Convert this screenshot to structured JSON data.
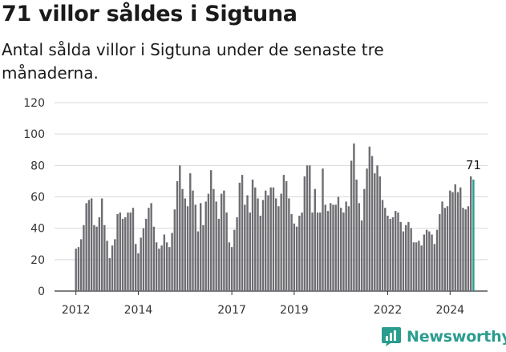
{
  "title": "71 villor såldes i Sigtuna",
  "subtitle": "Antal sålda villor i Sigtuna under de senaste tre månaderna.",
  "brand": {
    "name": "Newsworthy",
    "icon": "newsworthy-logo-icon",
    "color": "#2a9d8f"
  },
  "colors": {
    "bar": "#6d6d72",
    "highlight": "#2a9d8f",
    "grid": "#d9d9d9",
    "axis": "#333333"
  },
  "chart_data": {
    "type": "bar",
    "title": "71 villor såldes i Sigtuna",
    "subtitle": "Antal sålda villor i Sigtuna under de senaste tre månaderna.",
    "xlabel": "",
    "ylabel": "",
    "ylim": [
      0,
      120
    ],
    "yticks": [
      0,
      20,
      40,
      60,
      80,
      100,
      120
    ],
    "xticks": [
      {
        "label": "2012",
        "index": 0
      },
      {
        "label": "2014",
        "index": 24
      },
      {
        "label": "2017",
        "index": 60
      },
      {
        "label": "2019",
        "index": 84
      },
      {
        "label": "2022",
        "index": 120
      },
      {
        "label": "2024",
        "index": 144
      }
    ],
    "grid": true,
    "legend": "none",
    "highlight_last": true,
    "last_value_label": "71",
    "start": "2011-10",
    "frequency": "monthly",
    "values": [
      27,
      28,
      33,
      42,
      56,
      58,
      59,
      42,
      41,
      47,
      59,
      42,
      32,
      21,
      29,
      33,
      49,
      50,
      46,
      47,
      50,
      50,
      53,
      30,
      24,
      34,
      40,
      46,
      53,
      56,
      41,
      31,
      27,
      29,
      36,
      31,
      28,
      37,
      52,
      70,
      80,
      65,
      59,
      54,
      75,
      64,
      55,
      38,
      56,
      42,
      57,
      62,
      77,
      65,
      57,
      46,
      62,
      64,
      50,
      31,
      28,
      39,
      47,
      69,
      74,
      55,
      61,
      50,
      71,
      66,
      59,
      48,
      58,
      64,
      61,
      66,
      66,
      59,
      54,
      62,
      74,
      70,
      59,
      49,
      43,
      41,
      48,
      50,
      73,
      80,
      80,
      50,
      65,
      50,
      50,
      78,
      55,
      51,
      56,
      55,
      55,
      60,
      53,
      50,
      57,
      54,
      83,
      94,
      71,
      56,
      45,
      65,
      78,
      92,
      86,
      75,
      80,
      73,
      58,
      53,
      48,
      46,
      47,
      51,
      50,
      44,
      38,
      42,
      44,
      40,
      31,
      31,
      32,
      29,
      36,
      39,
      38,
      36,
      30,
      39,
      49,
      57,
      53,
      54,
      64,
      63,
      68,
      63,
      66,
      53,
      52,
      54,
      73,
      71
    ]
  }
}
